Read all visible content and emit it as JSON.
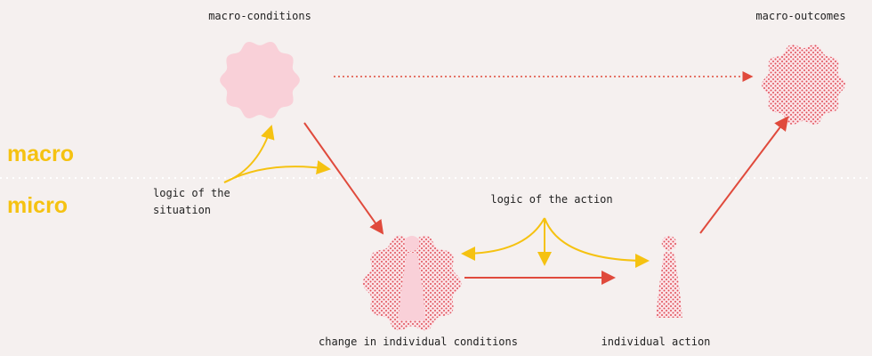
{
  "nodes": [
    {
      "label": "macro-conditions"
    },
    {
      "label": "macro-outcomes"
    },
    {
      "label": "change in individual conditions"
    },
    {
      "label": "individual action"
    }
  ],
  "levels": {
    "macro": "macro",
    "micro": "micro"
  },
  "annotations": {
    "situation": "logic of the situation",
    "action": "logic of the action"
  }
}
